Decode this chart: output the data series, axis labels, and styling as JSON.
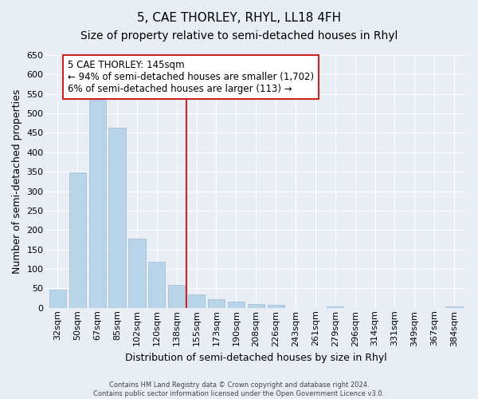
{
  "title": "5, CAE THORLEY, RHYL, LL18 4FH",
  "subtitle": "Size of property relative to semi-detached houses in Rhyl",
  "xlabel": "Distribution of semi-detached houses by size in Rhyl",
  "ylabel": "Number of semi-detached properties",
  "bar_labels": [
    "32sqm",
    "50sqm",
    "67sqm",
    "85sqm",
    "102sqm",
    "120sqm",
    "138sqm",
    "155sqm",
    "173sqm",
    "190sqm",
    "208sqm",
    "226sqm",
    "243sqm",
    "261sqm",
    "279sqm",
    "296sqm",
    "314sqm",
    "331sqm",
    "349sqm",
    "367sqm",
    "384sqm"
  ],
  "bar_values": [
    46,
    349,
    535,
    464,
    178,
    119,
    60,
    35,
    22,
    15,
    10,
    7,
    0,
    0,
    3,
    0,
    0,
    0,
    0,
    0,
    4
  ],
  "bar_color": "#b8d4e8",
  "bar_edge_color": "#a0bcd6",
  "marker_label": "5 CAE THORLEY: 145sqm",
  "annotation_line1": "← 94% of semi-detached houses are smaller (1,702)",
  "annotation_line2": "6% of semi-detached houses are larger (113) →",
  "vline_color": "#cc2222",
  "vline_x": 6.5,
  "ylim": [
    0,
    650
  ],
  "yticks": [
    0,
    50,
    100,
    150,
    200,
    250,
    300,
    350,
    400,
    450,
    500,
    550,
    600,
    650
  ],
  "footer_line1": "Contains HM Land Registry data © Crown copyright and database right 2024.",
  "footer_line2": "Contains public sector information licensed under the Open Government Licence v3.0.",
  "background_color": "#e8eef4",
  "plot_bg_color": "#e8eef4",
  "grid_color": "#ffffff",
  "title_fontsize": 11,
  "subtitle_fontsize": 10,
  "axis_label_fontsize": 9,
  "tick_fontsize": 8,
  "annotation_fontsize": 8.5,
  "footer_fontsize": 6
}
